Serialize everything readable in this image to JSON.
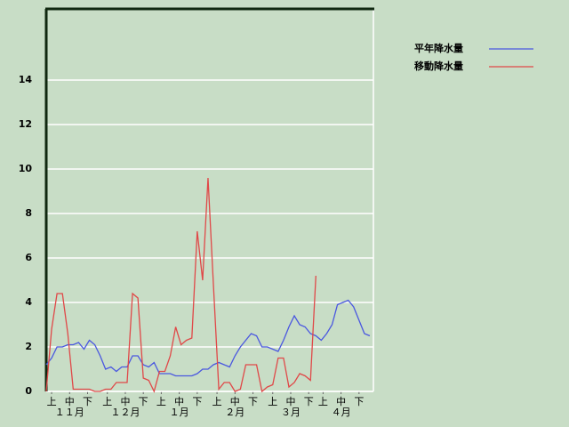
{
  "chart_data": {
    "type": "line",
    "x": [
      0,
      3,
      6,
      9,
      12,
      15,
      18,
      21,
      24,
      27,
      30,
      33,
      36,
      39,
      42,
      45,
      48,
      51,
      54,
      57,
      60,
      63,
      66,
      69,
      72,
      75,
      78,
      81,
      84,
      87,
      90,
      93,
      96,
      99,
      102,
      105,
      108,
      111,
      114,
      117,
      120,
      123,
      126,
      129,
      132,
      135,
      138,
      141,
      144,
      147,
      150,
      153,
      156,
      159,
      162,
      165,
      168,
      171,
      174,
      177,
      180
    ],
    "series": [
      {
        "name": "平年降水量",
        "color": "#4a57e0",
        "values": [
          1.2,
          1.5,
          2.0,
          2.0,
          2.1,
          2.1,
          2.2,
          1.9,
          2.3,
          2.1,
          1.6,
          1.0,
          1.1,
          0.9,
          1.1,
          1.1,
          1.6,
          1.6,
          1.2,
          1.1,
          1.3,
          0.8,
          0.8,
          0.8,
          0.7,
          0.7,
          0.7,
          0.7,
          0.8,
          1.0,
          1.0,
          1.2,
          1.3,
          1.2,
          1.1,
          1.6,
          2.0,
          2.3,
          2.6,
          2.5,
          2.0,
          2.0,
          1.9,
          1.8,
          2.3,
          2.9,
          3.4,
          3.0,
          2.9,
          2.6,
          2.5,
          2.3,
          2.6,
          3.0,
          3.9,
          4.0,
          4.1,
          3.8,
          3.2,
          2.6,
          2.5
        ]
      },
      {
        "name": "移動降水量",
        "color": "#e04848",
        "values": [
          0,
          2.8,
          4.4,
          4.4,
          2.6,
          0.1,
          0.1,
          0.1,
          0.1,
          0,
          0,
          0.1,
          0.1,
          0.4,
          0.4,
          0.4,
          4.4,
          4.2,
          0.6,
          0.5,
          0,
          0.9,
          0.9,
          1.6,
          2.9,
          2.1,
          2.3,
          2.4,
          7.2,
          5.0,
          9.6,
          4.8,
          0.1,
          0.4,
          0.4,
          0,
          0.1,
          1.2,
          1.2,
          1.2,
          0,
          0.2,
          0.3,
          1.5,
          1.5,
          0.2,
          0.4,
          0.8,
          0.7,
          0.5,
          5.2,
          null,
          null,
          null,
          null,
          null,
          null,
          null,
          null,
          null,
          null
        ]
      }
    ],
    "xlim": [
      0,
      182
    ],
    "xticks": [
      {
        "value": 3,
        "label": "上"
      },
      {
        "value": 13,
        "label": "中"
      },
      {
        "value": 23,
        "label": "下"
      },
      {
        "value": 34,
        "label": "上"
      },
      {
        "value": 44,
        "label": "中"
      },
      {
        "value": 54,
        "label": "下"
      },
      {
        "value": 64,
        "label": "上"
      },
      {
        "value": 74,
        "label": "中"
      },
      {
        "value": 84,
        "label": "下"
      },
      {
        "value": 95,
        "label": "上"
      },
      {
        "value": 105,
        "label": "中"
      },
      {
        "value": 115,
        "label": "下"
      },
      {
        "value": 126,
        "label": "上"
      },
      {
        "value": 136,
        "label": "中"
      },
      {
        "value": 146,
        "label": "下"
      },
      {
        "value": 154,
        "label": "上"
      },
      {
        "value": 164,
        "label": "中"
      },
      {
        "value": 174,
        "label": "下"
      }
    ],
    "month_ticks": [
      {
        "value": 13,
        "label": "１１月"
      },
      {
        "value": 44,
        "label": "１２月"
      },
      {
        "value": 74,
        "label": "１月"
      },
      {
        "value": 105,
        "label": "２月"
      },
      {
        "value": 136,
        "label": "３月"
      },
      {
        "value": 164,
        "label": "４月"
      }
    ],
    "ylim": [
      0,
      17.2
    ],
    "yticks": [
      0,
      2,
      4,
      6,
      8,
      10,
      12,
      14
    ],
    "grid": true
  }
}
